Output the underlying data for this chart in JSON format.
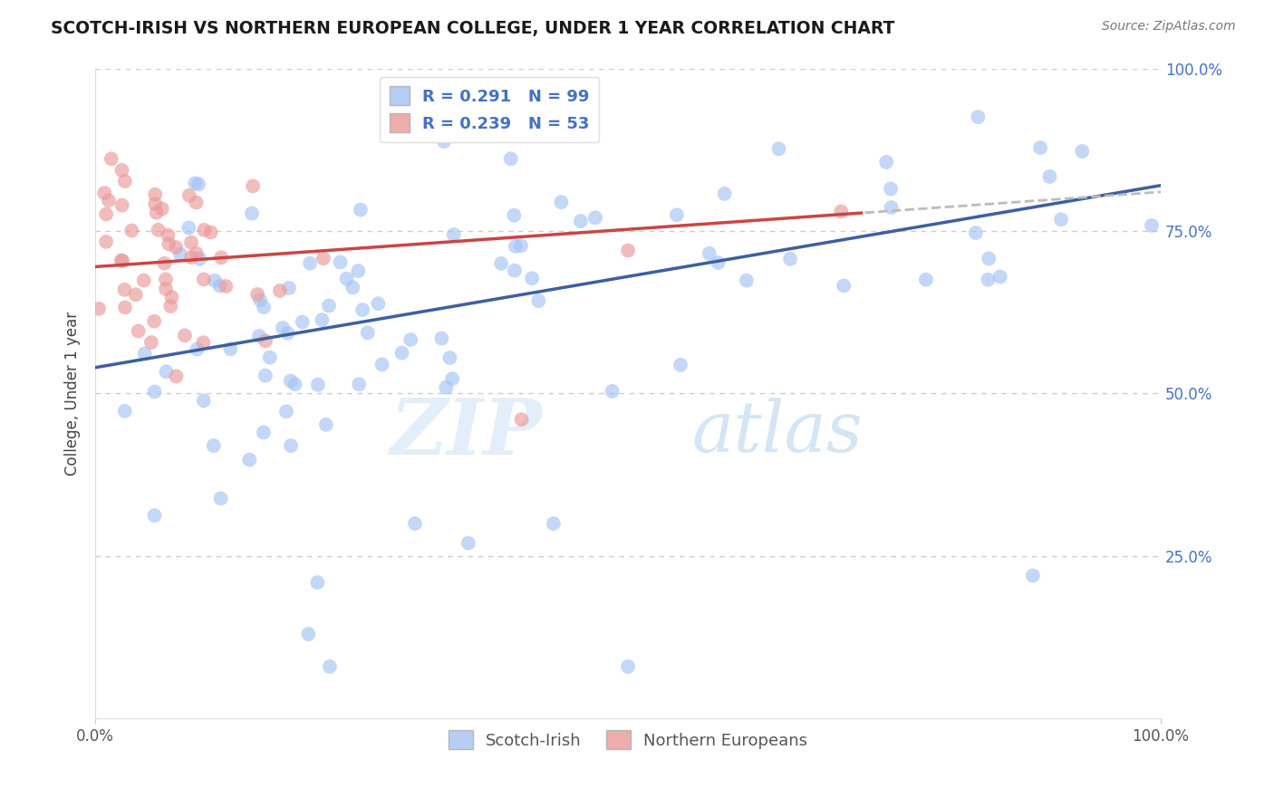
{
  "title": "SCOTCH-IRISH VS NORTHERN EUROPEAN COLLEGE, UNDER 1 YEAR CORRELATION CHART",
  "source": "Source: ZipAtlas.com",
  "ylabel": "College, Under 1 year",
  "xlim": [
    0,
    1
  ],
  "ylim": [
    0,
    1
  ],
  "ytick_labels_right": [
    "",
    "25.0%",
    "50.0%",
    "75.0%",
    "100.0%"
  ],
  "blue_color": "#a4c2f4",
  "pink_color": "#ea9999",
  "blue_line_color": "#3d5fa0",
  "pink_line_color": "#cc4444",
  "dashed_line_color": "#bbbbbb",
  "R_blue": 0.291,
  "N_blue": 99,
  "R_pink": 0.239,
  "N_pink": 53,
  "legend_label_blue": "Scotch-Irish",
  "legend_label_pink": "Northern Europeans",
  "watermark_zip": "ZIP",
  "watermark_atlas": "atlas",
  "background_color": "#ffffff",
  "grid_color": "#cccccc",
  "figsize": [
    14.06,
    8.92
  ],
  "dpi": 100,
  "blue_intercept": 0.54,
  "blue_slope": 0.28,
  "pink_intercept": 0.695,
  "pink_slope": 0.115
}
